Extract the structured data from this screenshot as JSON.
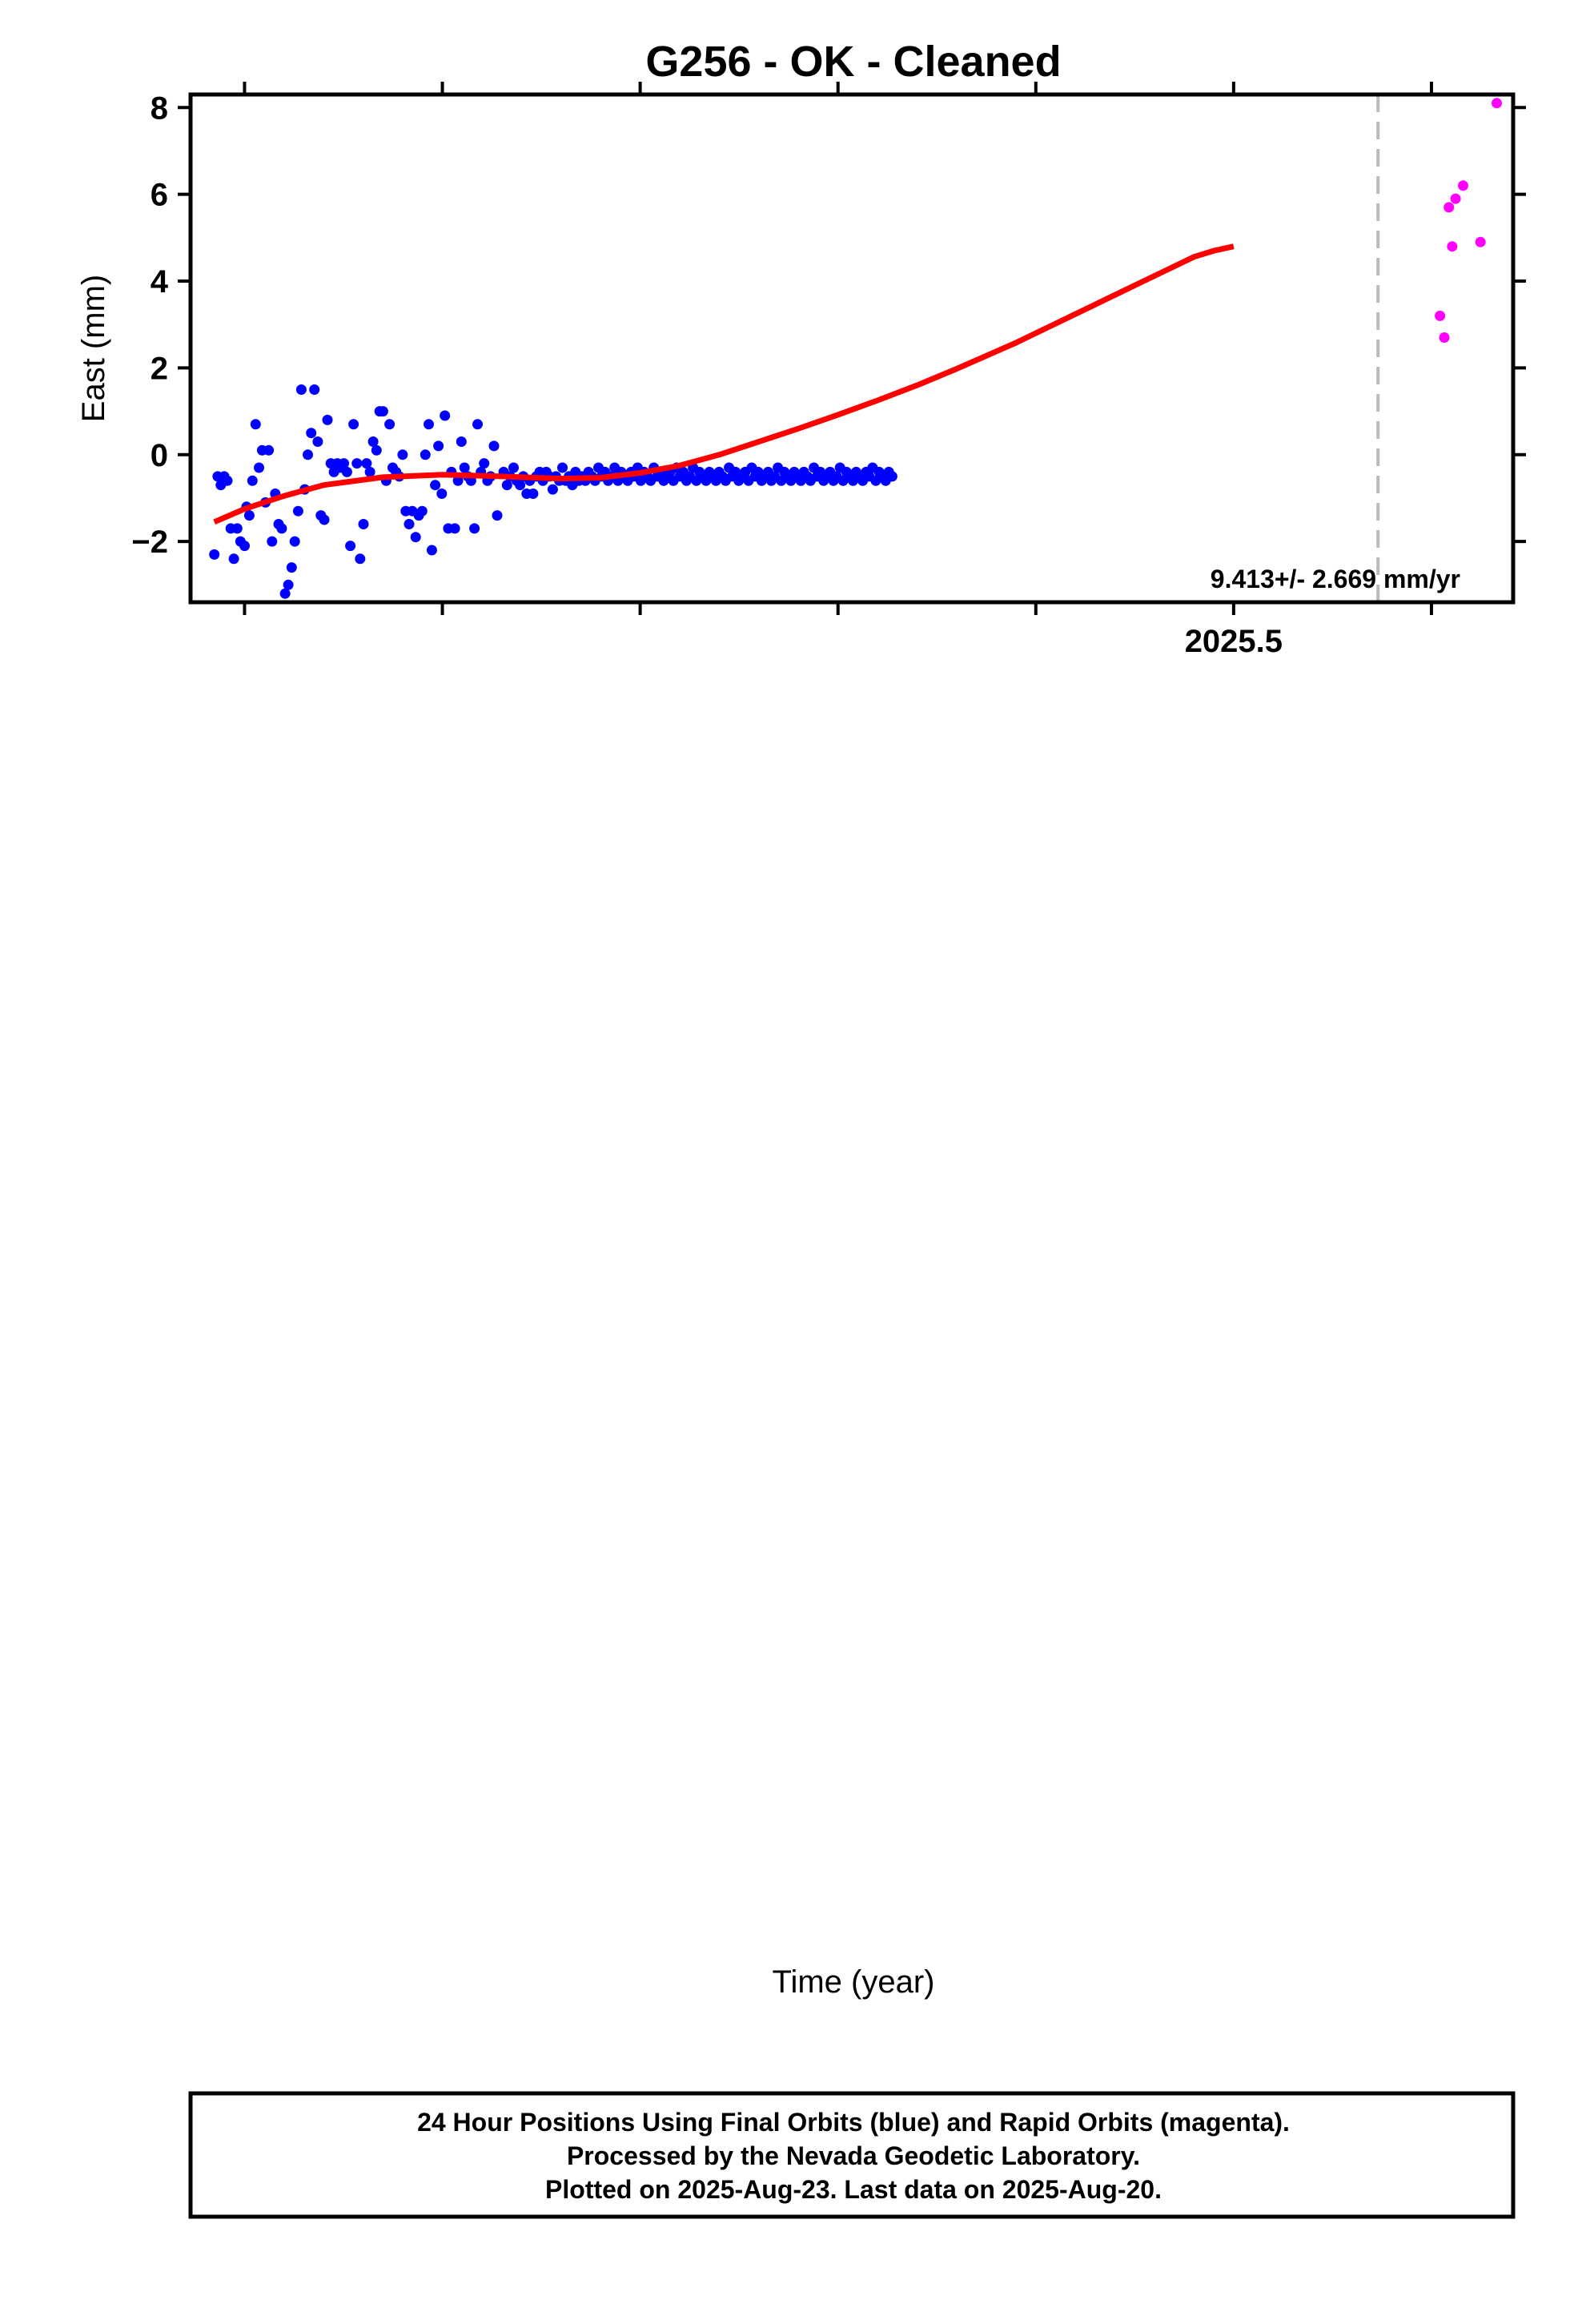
{
  "title": "G256  - OK - Cleaned",
  "xlabel": "Time (year)",
  "footer": {
    "line1": "24 Hour Positions Using Final Orbits (blue) and Rapid Orbits (magenta).",
    "line2": "Processed by the Nevada Geodetic Laboratory.",
    "line3": "Plotted on 2025-Aug-23. Last data on 2025-Aug-20."
  },
  "colors": {
    "final": "#0000ff",
    "rapid": "#ff00ff",
    "model": "#ff0000",
    "break": "#bbbbbb"
  },
  "chart_data": [
    {
      "type": "scatter",
      "ylabel": "East (mm)",
      "rate": "9.413+/- 2.669 mm/yr",
      "xlim": [
        2024.9727,
        2025.6413
      ],
      "ylim": [
        -3.4,
        8.3
      ],
      "yticks": [
        -2,
        0,
        2,
        4,
        6,
        8
      ],
      "xtick_label": "2025.5",
      "break_x": 2025.573,
      "final": [
        [
          2024.9847,
          -2.3
        ],
        [
          2024.9864,
          -0.5
        ],
        [
          2024.988,
          -0.7
        ],
        [
          2024.9897,
          -0.5
        ],
        [
          2024.9913,
          -0.6
        ],
        [
          2024.993,
          -1.7
        ],
        [
          2024.9946,
          -2.4
        ],
        [
          2024.9963,
          -1.7
        ],
        [
          2024.9979,
          -2.0
        ],
        [
          2025.0,
          -2.1
        ],
        [
          2025.001,
          -1.2
        ],
        [
          2025.0024,
          -1.4
        ],
        [
          2025.004,
          -0.6
        ],
        [
          2025.0056,
          0.7
        ],
        [
          2025.0073,
          -0.3
        ],
        [
          2025.0089,
          0.1
        ],
        [
          2025.0106,
          -1.1
        ],
        [
          2025.0122,
          0.1
        ],
        [
          2025.0139,
          -2.0
        ],
        [
          2025.0155,
          -0.9
        ],
        [
          2025.0172,
          -1.6
        ],
        [
          2025.0188,
          -1.7
        ],
        [
          2025.0205,
          -3.2
        ],
        [
          2025.0221,
          -3.0
        ],
        [
          2025.0238,
          -2.6
        ],
        [
          2025.0254,
          -2.0
        ],
        [
          2025.0271,
          -1.3
        ],
        [
          2025.0287,
          1.5
        ],
        [
          2025.0304,
          -0.8
        ],
        [
          2025.032,
          0.0
        ],
        [
          2025.0337,
          0.5
        ],
        [
          2025.0353,
          1.5
        ],
        [
          2025.037,
          0.3
        ],
        [
          2025.0386,
          -1.4
        ],
        [
          2025.0403,
          -1.5
        ],
        [
          2025.0419,
          0.8
        ],
        [
          2025.0436,
          -0.2
        ],
        [
          2025.0452,
          -0.4
        ],
        [
          2025.0469,
          -0.2
        ],
        [
          2025.0485,
          -0.3
        ],
        [
          2025.0502,
          -0.2
        ],
        [
          2025.0518,
          -0.4
        ],
        [
          2025.0535,
          -2.1
        ],
        [
          2025.0551,
          0.7
        ],
        [
          2025.0568,
          -0.2
        ],
        [
          2025.0584,
          -2.4
        ],
        [
          2025.0601,
          -1.6
        ],
        [
          2025.0617,
          -0.2
        ],
        [
          2025.0634,
          -0.4
        ],
        [
          2025.065,
          0.3
        ],
        [
          2025.0667,
          0.1
        ],
        [
          2025.0683,
          1.0
        ],
        [
          2025.07,
          1.0
        ],
        [
          2025.0716,
          -0.6
        ],
        [
          2025.0733,
          0.7
        ],
        [
          2025.0749,
          -0.3
        ],
        [
          2025.0766,
          -0.4
        ],
        [
          2025.0782,
          -0.5
        ],
        [
          2025.0799,
          0.0
        ],
        [
          2025.0815,
          -1.3
        ],
        [
          2025.0832,
          -1.6
        ],
        [
          2025.0848,
          -1.3
        ],
        [
          2025.0865,
          -1.9
        ],
        [
          2025.0881,
          -1.4
        ],
        [
          2025.0898,
          -1.3
        ],
        [
          2025.0914,
          0.0
        ],
        [
          2025.0931,
          0.7
        ],
        [
          2025.0947,
          -2.2
        ],
        [
          2025.0964,
          -0.7
        ],
        [
          2025.098,
          0.2
        ],
        [
          2025.0997,
          -0.9
        ],
        [
          2025.1013,
          0.9
        ],
        [
          2025.103,
          -1.7
        ],
        [
          2025.1046,
          -0.4
        ],
        [
          2025.1063,
          -1.7
        ],
        [
          2025.1079,
          -0.6
        ],
        [
          2025.1096,
          0.3
        ],
        [
          2025.1112,
          -0.3
        ],
        [
          2025.1129,
          -0.5
        ],
        [
          2025.1145,
          -0.6
        ],
        [
          2025.1162,
          -1.7
        ],
        [
          2025.1178,
          0.7
        ],
        [
          2025.1195,
          -0.4
        ],
        [
          2025.1211,
          -0.2
        ],
        [
          2025.1228,
          -0.6
        ],
        [
          2025.1244,
          -0.5
        ],
        [
          2025.1261,
          0.2
        ],
        [
          2025.1277,
          -1.4
        ],
        [
          2025.131,
          -0.4
        ],
        [
          2025.1327,
          -0.7
        ],
        [
          2025.1343,
          -0.5
        ],
        [
          2025.136,
          -0.3
        ],
        [
          2025.1376,
          -0.6
        ],
        [
          2025.1393,
          -0.7
        ],
        [
          2025.1409,
          -0.5
        ],
        [
          2025.1426,
          -0.9
        ],
        [
          2025.1442,
          -0.6
        ],
        [
          2025.1459,
          -0.9
        ],
        [
          2025.1475,
          -0.5
        ],
        [
          2025.1492,
          -0.4
        ],
        [
          2025.1508,
          -0.6
        ],
        [
          2025.1525,
          -0.4
        ],
        [
          2025.1541,
          -0.5
        ],
        [
          2025.1558,
          -0.8
        ],
        [
          2025.1574,
          -0.5
        ],
        [
          2025.1591,
          -0.6
        ],
        [
          2025.1607,
          -0.3
        ],
        [
          2025.1624,
          -0.6
        ],
        [
          2025.164,
          -0.5
        ],
        [
          2025.1657,
          -0.7
        ],
        [
          2025.1673,
          -0.4
        ],
        [
          2025.169,
          -0.6
        ],
        [
          2025.1706,
          -0.5
        ],
        [
          2025.1723,
          -0.6
        ],
        [
          2025.1739,
          -0.4
        ],
        [
          2025.1756,
          -0.5
        ],
        [
          2025.1772,
          -0.6
        ],
        [
          2025.1789,
          -0.3
        ],
        [
          2025.1805,
          -0.5
        ],
        [
          2025.1822,
          -0.4
        ],
        [
          2025.1838,
          -0.6
        ],
        [
          2025.1855,
          -0.5
        ],
        [
          2025.1871,
          -0.3
        ],
        [
          2025.1888,
          -0.6
        ],
        [
          2025.1904,
          -0.4
        ],
        [
          2025.1921,
          -0.5
        ],
        [
          2025.1937,
          -0.6
        ],
        [
          2025.1954,
          -0.4
        ],
        [
          2025.197,
          -0.5
        ],
        [
          2025.1987,
          -0.3
        ],
        [
          2025.2003,
          -0.6
        ],
        [
          2025.202,
          -0.4
        ],
        [
          2025.2036,
          -0.5
        ],
        [
          2025.2053,
          -0.6
        ],
        [
          2025.2069,
          -0.3
        ],
        [
          2025.2086,
          -0.5
        ],
        [
          2025.2102,
          -0.4
        ],
        [
          2025.2119,
          -0.6
        ],
        [
          2025.2135,
          -0.5
        ],
        [
          2025.2152,
          -0.4
        ],
        [
          2025.2168,
          -0.6
        ],
        [
          2025.2185,
          -0.3
        ],
        [
          2025.2201,
          -0.5
        ],
        [
          2025.2218,
          -0.4
        ],
        [
          2025.2234,
          -0.6
        ],
        [
          2025.2251,
          -0.5
        ],
        [
          2025.2267,
          -0.3
        ],
        [
          2025.2284,
          -0.6
        ],
        [
          2025.23,
          -0.4
        ],
        [
          2025.2317,
          -0.5
        ],
        [
          2025.2333,
          -0.6
        ],
        [
          2025.235,
          -0.4
        ],
        [
          2025.2366,
          -0.5
        ],
        [
          2025.2383,
          -0.6
        ],
        [
          2025.2399,
          -0.4
        ],
        [
          2025.2416,
          -0.5
        ],
        [
          2025.2432,
          -0.6
        ],
        [
          2025.2449,
          -0.3
        ],
        [
          2025.2465,
          -0.5
        ],
        [
          2025.2482,
          -0.4
        ],
        [
          2025.2498,
          -0.6
        ],
        [
          2025.2515,
          -0.5
        ],
        [
          2025.2531,
          -0.4
        ],
        [
          2025.2548,
          -0.6
        ],
        [
          2025.2564,
          -0.3
        ],
        [
          2025.2581,
          -0.5
        ],
        [
          2025.2597,
          -0.4
        ],
        [
          2025.2614,
          -0.6
        ],
        [
          2025.263,
          -0.5
        ],
        [
          2025.2647,
          -0.4
        ],
        [
          2025.2663,
          -0.6
        ],
        [
          2025.268,
          -0.5
        ],
        [
          2025.2696,
          -0.3
        ],
        [
          2025.2713,
          -0.6
        ],
        [
          2025.2729,
          -0.4
        ],
        [
          2025.2746,
          -0.5
        ],
        [
          2025.2762,
          -0.6
        ],
        [
          2025.2779,
          -0.4
        ],
        [
          2025.2795,
          -0.5
        ],
        [
          2025.2812,
          -0.6
        ],
        [
          2025.2828,
          -0.4
        ],
        [
          2025.2845,
          -0.5
        ],
        [
          2025.2861,
          -0.6
        ],
        [
          2025.2878,
          -0.3
        ],
        [
          2025.2894,
          -0.5
        ],
        [
          2025.2911,
          -0.4
        ],
        [
          2025.2927,
          -0.6
        ],
        [
          2025.2944,
          -0.5
        ],
        [
          2025.296,
          -0.4
        ],
        [
          2025.2977,
          -0.6
        ],
        [
          2025.2993,
          -0.5
        ],
        [
          2025.301,
          -0.3
        ],
        [
          2025.3026,
          -0.6
        ],
        [
          2025.3043,
          -0.4
        ],
        [
          2025.3059,
          -0.5
        ],
        [
          2025.3076,
          -0.6
        ],
        [
          2025.3092,
          -0.4
        ],
        [
          2025.3109,
          -0.5
        ],
        [
          2025.3125,
          -0.6
        ],
        [
          2025.3142,
          -0.4
        ],
        [
          2025.3158,
          -0.5
        ],
        [
          2025.3175,
          -0.3
        ],
        [
          2025.3191,
          -0.6
        ],
        [
          2025.3208,
          -0.4
        ],
        [
          2025.3224,
          -0.5
        ],
        [
          2025.3241,
          -0.6
        ],
        [
          2025.3257,
          -0.4
        ],
        [
          2025.3274,
          -0.5
        ]
      ],
      "rapid": [
        [
          2025.6043,
          3.2
        ],
        [
          2025.6065,
          2.7
        ],
        [
          2025.6088,
          5.7
        ],
        [
          2025.6105,
          4.8
        ],
        [
          2025.6122,
          5.9
        ],
        [
          2025.616,
          6.2
        ],
        [
          2025.6248,
          4.9
        ],
        [
          2025.633,
          8.1
        ]
      ],
      "model": [
        [
          2024.9847,
          -1.55
        ],
        [
          2025.0,
          -1.25
        ],
        [
          2025.02,
          -0.95
        ],
        [
          2025.04,
          -0.7
        ],
        [
          2025.07,
          -0.52
        ],
        [
          2025.1,
          -0.46
        ],
        [
          2025.13,
          -0.5
        ],
        [
          2025.16,
          -0.55
        ],
        [
          2025.18,
          -0.53
        ],
        [
          2025.2,
          -0.42
        ],
        [
          2025.22,
          -0.25
        ],
        [
          2025.24,
          0.0
        ],
        [
          2025.26,
          0.3
        ],
        [
          2025.28,
          0.6
        ],
        [
          2025.3,
          0.92
        ],
        [
          2025.32,
          1.25
        ],
        [
          2025.34,
          1.6
        ],
        [
          2025.36,
          1.98
        ],
        [
          2025.38,
          2.38
        ],
        [
          2025.39,
          2.58
        ],
        [
          2025.4,
          2.8
        ],
        [
          2025.41,
          3.02
        ],
        [
          2025.42,
          3.24
        ],
        [
          2025.43,
          3.46
        ],
        [
          2025.44,
          3.68
        ],
        [
          2025.45,
          3.9
        ],
        [
          2025.46,
          4.12
        ],
        [
          2025.47,
          4.34
        ],
        [
          2025.48,
          4.56
        ],
        [
          2025.49,
          4.7
        ],
        [
          2025.5,
          4.8
        ]
      ]
    }
  ]
}
